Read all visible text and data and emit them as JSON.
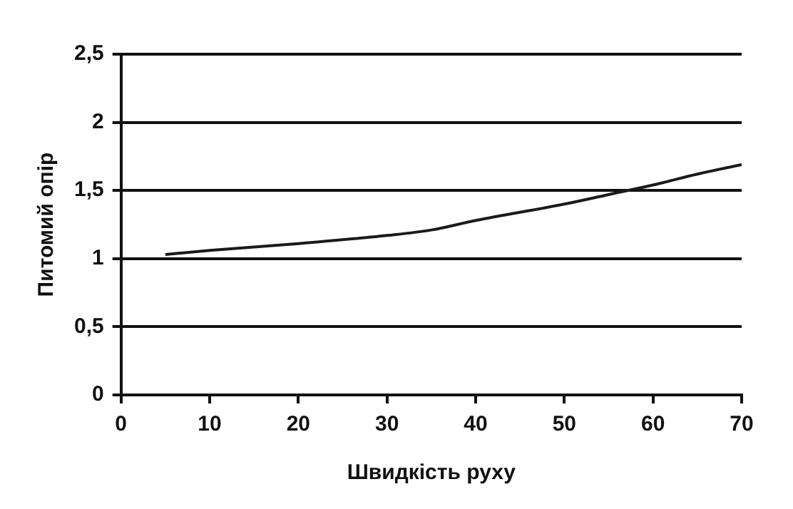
{
  "chart_data": {
    "type": "line",
    "xlabel": "Швидкість руху",
    "ylabel": "Питомий опір",
    "x": [
      5,
      10,
      20,
      30,
      35,
      40,
      50,
      55,
      60,
      65,
      70
    ],
    "series": [
      {
        "color": "#1a1a1a",
        "values": [
          1.03,
          1.06,
          1.11,
          1.17,
          1.21,
          1.28,
          1.4,
          1.47,
          1.54,
          1.62,
          1.69
        ]
      }
    ],
    "xlim": [
      0,
      70
    ],
    "xticks": [
      0,
      10,
      20,
      30,
      40,
      50,
      60,
      70
    ],
    "ylim": [
      0,
      2.5
    ],
    "yticks": [
      0,
      {
        "value": 0.5,
        "label": "0,5"
      },
      1,
      {
        "value": 1.5,
        "label": "1,5"
      },
      2,
      {
        "value": 2.5,
        "label": "2,5"
      }
    ],
    "grid": "y",
    "marker": "none",
    "line_style": "solid"
  }
}
